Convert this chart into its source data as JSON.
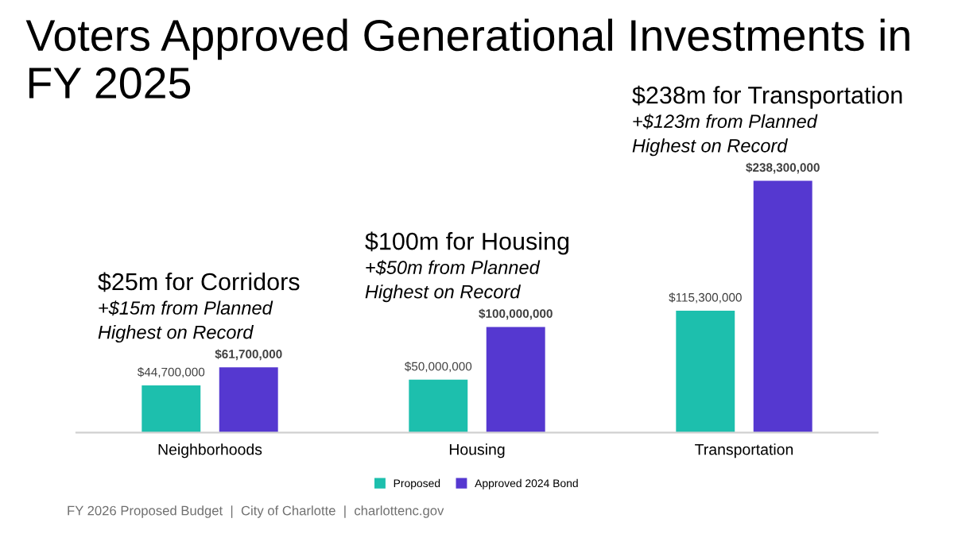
{
  "chart_data": {
    "type": "bar",
    "title": "Voters Approved Generational Investments in FY 2025",
    "categories": [
      "Neighborhoods",
      "Housing",
      "Transportation"
    ],
    "series": [
      {
        "name": "Proposed",
        "color": "#1dbfad",
        "values": [
          44700000,
          50000000,
          115300000
        ],
        "value_labels": [
          "$44,700,000",
          "$50,000,000",
          "$115,300,000"
        ]
      },
      {
        "name": "Approved 2024 Bond",
        "color": "#5538d0",
        "values": [
          61700000,
          100000000,
          238300000
        ],
        "value_labels": [
          "$61,700,000",
          "$100,000,000",
          "$238,300,000"
        ]
      }
    ],
    "grid": false,
    "legend": "bottom",
    "annotations": [
      "$25m for Corridors",
      "+$15m from Planned",
      "Highest on Record",
      "$100m for Housing",
      "+$50m from Planned",
      "Highest on Record",
      "$238m for Transportation",
      "+$123m from Planned",
      "Highest on Record",
      "FY 2026 Proposed Budget  |  City of Charlotte  |  charlottenc.gov"
    ]
  }
}
